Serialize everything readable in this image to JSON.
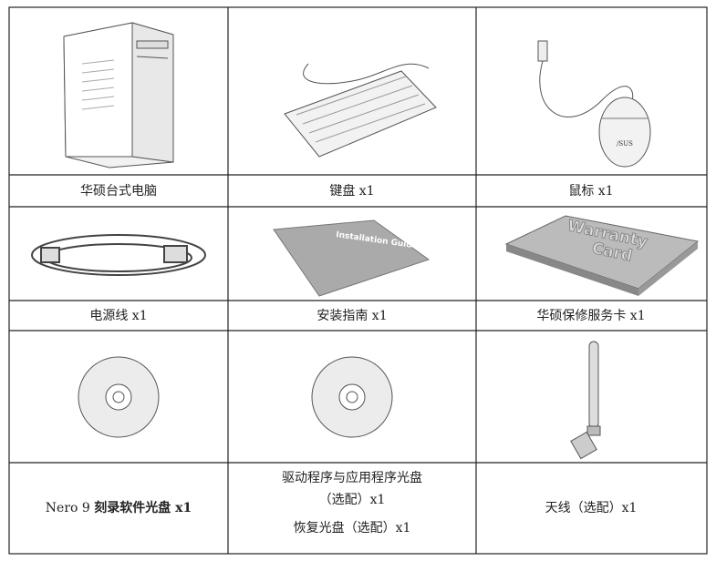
{
  "labels": [
    [
      "华硕台式电脑",
      "键盘 x1",
      "鼠标 x1"
    ],
    [
      "电源线 x1",
      "安装指南 x1",
      "华硕保修服务卡 x1"
    ]
  ],
  "row3": {
    "nero": [
      "Nero 9",
      "刻录软件光盘 x1"
    ],
    "driver": [
      "驱动程序与应用程序光盘",
      "（选配）x1",
      "恢复光盘（选配）x1"
    ],
    "antenna": "天线（选配）x1"
  },
  "illustrations": {
    "guide": "Installation Guide",
    "warranty": [
      "Warranty",
      "Card"
    ],
    "brand": "/SUS"
  }
}
